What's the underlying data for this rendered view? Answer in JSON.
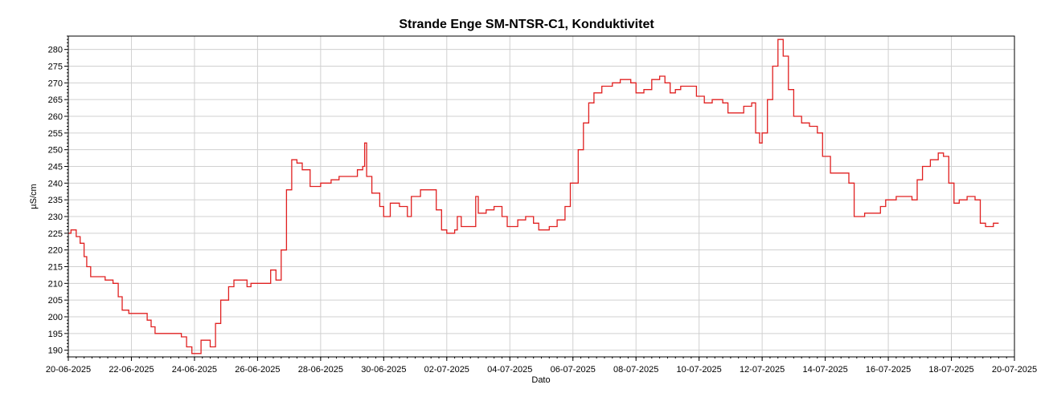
{
  "chart_data": {
    "type": "line",
    "title": "Strande Enge SM-NTSR-C1, Konduktivitet",
    "xlabel": "Dato",
    "ylabel": "µS/cm",
    "grid": true,
    "legend": "none",
    "line_color": "#e02020",
    "xlim": [
      "20-06-2025",
      "20-07-2025"
    ],
    "ylim": [
      188,
      284
    ],
    "y_ticks": [
      190,
      195,
      200,
      205,
      210,
      215,
      220,
      225,
      230,
      235,
      240,
      245,
      250,
      255,
      260,
      265,
      270,
      275,
      280
    ],
    "x_ticks": [
      "20-06-2025",
      "22-06-2025",
      "24-06-2025",
      "26-06-2025",
      "28-06-2025",
      "30-06-2025",
      "02-07-2025",
      "04-07-2025",
      "06-07-2025",
      "08-07-2025",
      "10-07-2025",
      "12-07-2025",
      "14-07-2025",
      "16-07-2025",
      "18-07-2025",
      "20-07-2025"
    ],
    "series": [
      {
        "points": [
          [
            "20-06-2025 00:00",
            225
          ],
          [
            "20-06-2025 02:00",
            226
          ],
          [
            "20-06-2025 06:00",
            224
          ],
          [
            "20-06-2025 09:00",
            222
          ],
          [
            "20-06-2025 12:00",
            218
          ],
          [
            "20-06-2025 14:00",
            215
          ],
          [
            "20-06-2025 17:00",
            212
          ],
          [
            "20-06-2025 22:00",
            212
          ],
          [
            "21-06-2025 04:00",
            211
          ],
          [
            "21-06-2025 10:00",
            210
          ],
          [
            "21-06-2025 14:00",
            206
          ],
          [
            "21-06-2025 17:00",
            202
          ],
          [
            "21-06-2025 22:00",
            201
          ],
          [
            "22-06-2025 06:00",
            201
          ],
          [
            "22-06-2025 12:00",
            199
          ],
          [
            "22-06-2025 15:00",
            197
          ],
          [
            "22-06-2025 18:00",
            195
          ],
          [
            "23-06-2025 08:00",
            195
          ],
          [
            "23-06-2025 14:00",
            194
          ],
          [
            "23-06-2025 18:00",
            191
          ],
          [
            "23-06-2025 22:00",
            189
          ],
          [
            "24-06-2025 02:00",
            189
          ],
          [
            "24-06-2025 05:00",
            193
          ],
          [
            "24-06-2025 09:00",
            193
          ],
          [
            "24-06-2025 12:00",
            191
          ],
          [
            "24-06-2025 16:00",
            198
          ],
          [
            "24-06-2025 20:00",
            205
          ],
          [
            "25-06-2025 02:00",
            209
          ],
          [
            "25-06-2025 06:00",
            211
          ],
          [
            "25-06-2025 12:00",
            211
          ],
          [
            "25-06-2025 16:00",
            209
          ],
          [
            "25-06-2025 19:00",
            210
          ],
          [
            "26-06-2025 06:00",
            210
          ],
          [
            "26-06-2025 10:00",
            214
          ],
          [
            "26-06-2025 14:00",
            211
          ],
          [
            "26-06-2025 18:00",
            220
          ],
          [
            "26-06-2025 22:00",
            238
          ],
          [
            "27-06-2025 02:00",
            247
          ],
          [
            "27-06-2025 06:00",
            246
          ],
          [
            "27-06-2025 10:00",
            244
          ],
          [
            "27-06-2025 16:00",
            239
          ],
          [
            "28-06-2025 00:00",
            240
          ],
          [
            "28-06-2025 08:00",
            241
          ],
          [
            "28-06-2025 14:00",
            242
          ],
          [
            "28-06-2025 22:00",
            242
          ],
          [
            "29-06-2025 04:00",
            244
          ],
          [
            "29-06-2025 08:00",
            245
          ],
          [
            "29-06-2025 09:30",
            252
          ],
          [
            "29-06-2025 11:00",
            242
          ],
          [
            "29-06-2025 15:00",
            237
          ],
          [
            "29-06-2025 21:00",
            233
          ],
          [
            "30-06-2025 00:00",
            230
          ],
          [
            "30-06-2025 05:00",
            234
          ],
          [
            "30-06-2025 12:00",
            233
          ],
          [
            "30-06-2025 18:00",
            230
          ],
          [
            "30-06-2025 21:00",
            236
          ],
          [
            "01-07-2025 04:00",
            238
          ],
          [
            "01-07-2025 12:00",
            238
          ],
          [
            "01-07-2025 16:00",
            232
          ],
          [
            "01-07-2025 20:00",
            226
          ],
          [
            "02-07-2025 00:00",
            225
          ],
          [
            "02-07-2025 06:00",
            226
          ],
          [
            "02-07-2025 08:00",
            230
          ],
          [
            "02-07-2025 11:00",
            227
          ],
          [
            "02-07-2025 18:00",
            227
          ],
          [
            "02-07-2025 22:00",
            236
          ],
          [
            "03-07-2025 00:00",
            231
          ],
          [
            "03-07-2025 06:00",
            232
          ],
          [
            "03-07-2025 12:00",
            233
          ],
          [
            "03-07-2025 18:00",
            230
          ],
          [
            "03-07-2025 22:00",
            227
          ],
          [
            "04-07-2025 06:00",
            229
          ],
          [
            "04-07-2025 12:00",
            230
          ],
          [
            "04-07-2025 18:00",
            228
          ],
          [
            "04-07-2025 22:00",
            226
          ],
          [
            "05-07-2025 06:00",
            227
          ],
          [
            "05-07-2025 12:00",
            229
          ],
          [
            "05-07-2025 18:00",
            233
          ],
          [
            "05-07-2025 22:00",
            240
          ],
          [
            "06-07-2025 04:00",
            250
          ],
          [
            "06-07-2025 08:00",
            258
          ],
          [
            "06-07-2025 12:00",
            264
          ],
          [
            "06-07-2025 16:00",
            267
          ],
          [
            "06-07-2025 22:00",
            269
          ],
          [
            "07-07-2025 06:00",
            270
          ],
          [
            "07-07-2025 12:00",
            271
          ],
          [
            "07-07-2025 20:00",
            270
          ],
          [
            "08-07-2025 00:00",
            267
          ],
          [
            "08-07-2025 06:00",
            268
          ],
          [
            "08-07-2025 12:00",
            271
          ],
          [
            "08-07-2025 18:00",
            272
          ],
          [
            "08-07-2025 22:00",
            270
          ],
          [
            "09-07-2025 02:00",
            267
          ],
          [
            "09-07-2025 06:00",
            268
          ],
          [
            "09-07-2025 10:00",
            269
          ],
          [
            "09-07-2025 18:00",
            269
          ],
          [
            "09-07-2025 22:00",
            266
          ],
          [
            "10-07-2025 04:00",
            264
          ],
          [
            "10-07-2025 10:00",
            265
          ],
          [
            "10-07-2025 18:00",
            264
          ],
          [
            "10-07-2025 22:00",
            261
          ],
          [
            "11-07-2025 04:00",
            261
          ],
          [
            "11-07-2025 10:00",
            263
          ],
          [
            "11-07-2025 16:00",
            264
          ],
          [
            "11-07-2025 19:00",
            255
          ],
          [
            "11-07-2025 22:00",
            252
          ],
          [
            "12-07-2025 00:00",
            255
          ],
          [
            "12-07-2025 04:00",
            265
          ],
          [
            "12-07-2025 08:00",
            275
          ],
          [
            "12-07-2025 12:00",
            283
          ],
          [
            "12-07-2025 16:00",
            278
          ],
          [
            "12-07-2025 20:00",
            268
          ],
          [
            "13-07-2025 00:00",
            260
          ],
          [
            "13-07-2025 06:00",
            258
          ],
          [
            "13-07-2025 12:00",
            257
          ],
          [
            "13-07-2025 18:00",
            255
          ],
          [
            "13-07-2025 22:00",
            248
          ],
          [
            "14-07-2025 04:00",
            243
          ],
          [
            "14-07-2025 12:00",
            243
          ],
          [
            "14-07-2025 18:00",
            240
          ],
          [
            "14-07-2025 22:00",
            230
          ],
          [
            "15-07-2025 06:00",
            231
          ],
          [
            "15-07-2025 12:00",
            231
          ],
          [
            "15-07-2025 18:00",
            233
          ],
          [
            "15-07-2025 22:00",
            235
          ],
          [
            "16-07-2025 06:00",
            236
          ],
          [
            "16-07-2025 12:00",
            236
          ],
          [
            "16-07-2025 18:00",
            235
          ],
          [
            "16-07-2025 22:00",
            241
          ],
          [
            "17-07-2025 02:00",
            245
          ],
          [
            "17-07-2025 08:00",
            247
          ],
          [
            "17-07-2025 14:00",
            249
          ],
          [
            "17-07-2025 18:00",
            248
          ],
          [
            "17-07-2025 22:00",
            240
          ],
          [
            "18-07-2025 02:00",
            234
          ],
          [
            "18-07-2025 06:00",
            235
          ],
          [
            "18-07-2025 12:00",
            236
          ],
          [
            "18-07-2025 18:00",
            235
          ],
          [
            "18-07-2025 22:00",
            228
          ],
          [
            "19-07-2025 02:00",
            227
          ],
          [
            "19-07-2025 06:00",
            227
          ],
          [
            "19-07-2025 08:00",
            228
          ],
          [
            "19-07-2025 12:00",
            228
          ]
        ]
      }
    ]
  }
}
